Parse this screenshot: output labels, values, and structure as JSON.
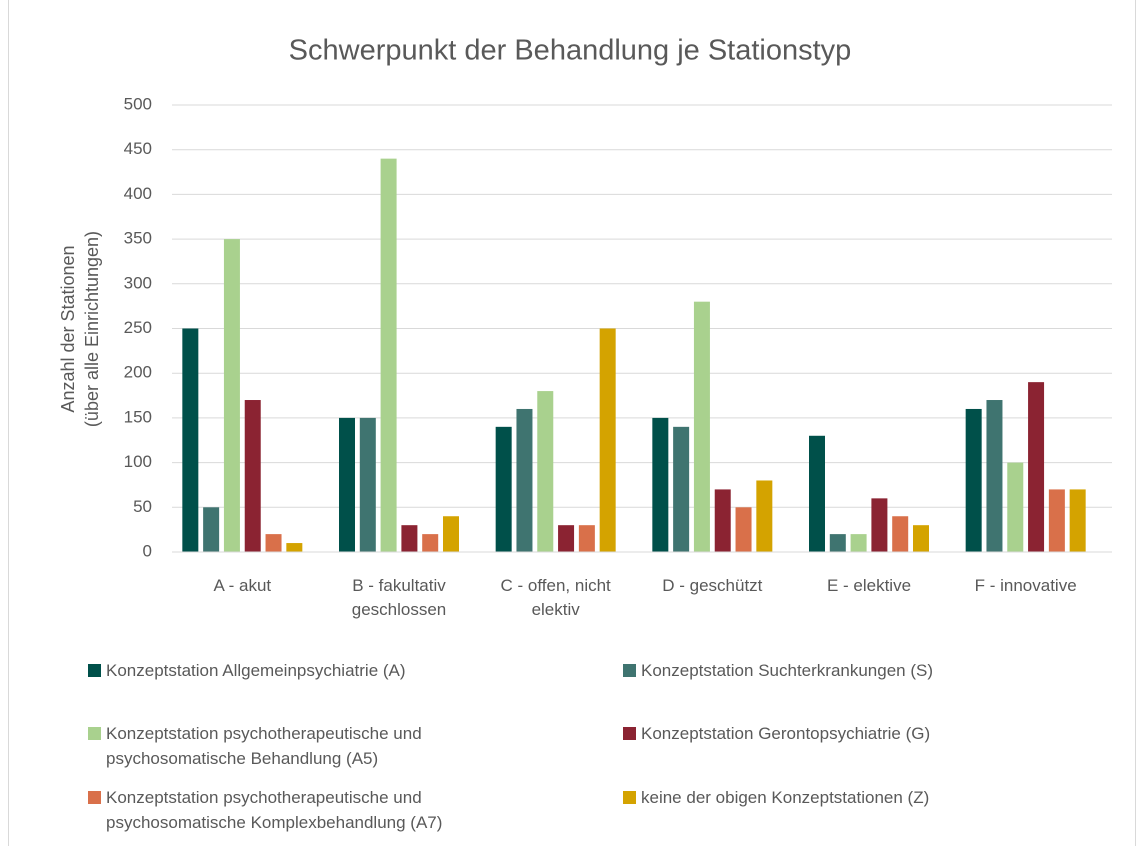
{
  "chart_data": {
    "type": "bar",
    "title": "Schwerpunkt der Behandlung je Stationstyp",
    "y_label": "Anzahl der Stationen (über alle Einrichtungen)",
    "categories": [
      "A - akut",
      "B - fakultativ geschlossen",
      "C - offen, nicht elektiv",
      "D - geschützt",
      "E - elektive",
      "F - innovative"
    ],
    "series": [
      {
        "name": "Konzeptstation Allgemeinpsychiatrie (A)",
        "color": "#00504a",
        "values": [
          250,
          150,
          140,
          150,
          130,
          160
        ]
      },
      {
        "name": "Konzeptstation Suchterkrankungen (S)",
        "color": "#3f7470",
        "values": [
          50,
          150,
          160,
          140,
          20,
          170
        ]
      },
      {
        "name": "Konzeptstation psychotherapeutische und psychosomatische Behandlung (A5)",
        "color": "#a9d18e",
        "values": [
          350,
          440,
          180,
          280,
          20,
          100
        ]
      },
      {
        "name": "Konzeptstation Gerontopsychiatrie (G)",
        "color": "#8b2332",
        "values": [
          170,
          30,
          30,
          70,
          60,
          190
        ]
      },
      {
        "name": "Konzeptstation psychotherapeutische und psychosomatische Komplexbehandlung (A7)",
        "color": "#d9704a",
        "values": [
          20,
          20,
          30,
          50,
          40,
          70
        ]
      },
      {
        "name": "keine der obigen Konzeptstationen (Z)",
        "color": "#d4a300",
        "values": [
          10,
          40,
          250,
          80,
          30,
          70
        ]
      }
    ],
    "ylim": [
      0,
      500
    ],
    "yticks": [
      0,
      50,
      100,
      150,
      200,
      250,
      300,
      350,
      400,
      450,
      500
    ],
    "grid": true
  }
}
